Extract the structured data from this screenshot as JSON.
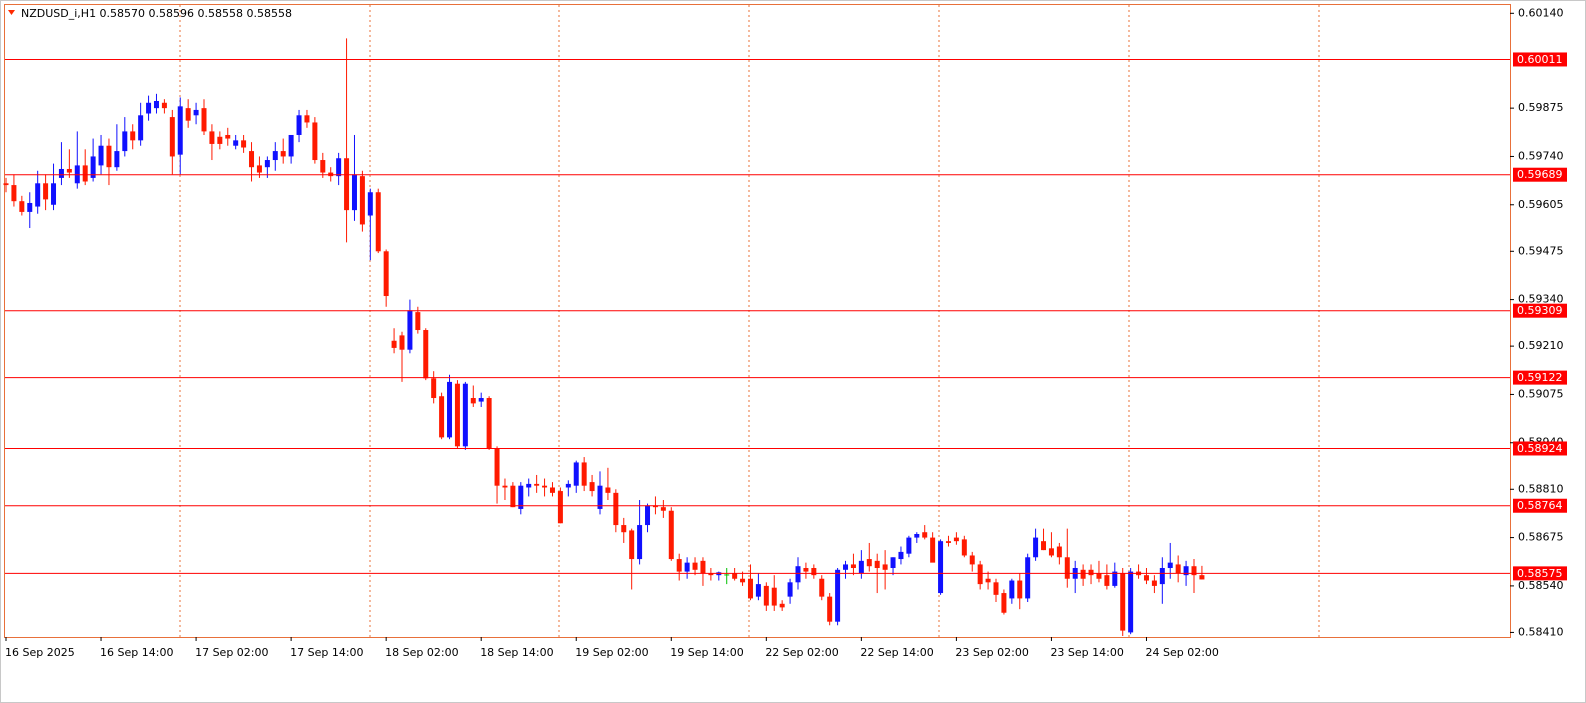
{
  "chart_data": {
    "type": "candlestick",
    "header": "NZDUSD_i,H1  0.58570 0.58596 0.58558 0.58558",
    "up_color": "#1010ff",
    "down_color": "#ff1a00",
    "doji_color": "#00c000",
    "level_color": "#ff0000",
    "ylim": [
      0.584,
      0.60166
    ],
    "yticks": [
      {
        "value": 0.6014,
        "label": "0.60140"
      },
      {
        "value": 0.59875,
        "label": "0.59875"
      },
      {
        "value": 0.5974,
        "label": "0.59740"
      },
      {
        "value": 0.59605,
        "label": "0.59605"
      },
      {
        "value": 0.59475,
        "label": "0.59475"
      },
      {
        "value": 0.5934,
        "label": "0.59340"
      },
      {
        "value": 0.5921,
        "label": "0.59210"
      },
      {
        "value": 0.59075,
        "label": "0.59075"
      },
      {
        "value": 0.5894,
        "label": "0.58940"
      },
      {
        "value": 0.5881,
        "label": "0.58810"
      },
      {
        "value": 0.58675,
        "label": "0.58675"
      },
      {
        "value": 0.5854,
        "label": "0.58540"
      },
      {
        "value": 0.5841,
        "label": "0.58410"
      }
    ],
    "levels": [
      0.60011,
      0.59689,
      0.59309,
      0.59122,
      0.58924,
      0.58764,
      0.58575
    ],
    "categories": [
      "16 Sep 2025",
      null,
      null,
      null,
      null,
      null,
      null,
      null,
      null,
      null,
      null,
      null,
      "16 Sep 14:00",
      null,
      null,
      null,
      null,
      null,
      null,
      null,
      null,
      null,
      null,
      null,
      "17 Sep 02:00",
      null,
      null,
      null,
      null,
      null,
      null,
      null,
      null,
      null,
      null,
      null,
      "17 Sep 14:00",
      null,
      null,
      null,
      null,
      null,
      null,
      null,
      null,
      null,
      null,
      null,
      "18 Sep 02:00",
      null,
      null,
      null,
      null,
      null,
      null,
      null,
      null,
      null,
      null,
      null,
      "18 Sep 14:00",
      null,
      null,
      null,
      null,
      null,
      null,
      null,
      null,
      null,
      null,
      null,
      "19 Sep 02:00",
      null,
      null,
      null,
      null,
      null,
      null,
      null,
      null,
      null,
      null,
      null,
      "19 Sep 14:00",
      null,
      null,
      null,
      null,
      null,
      null,
      null,
      null,
      null,
      null,
      null,
      "22 Sep 02:00",
      null,
      null,
      null,
      null,
      null,
      null,
      null,
      null,
      null,
      null,
      null,
      "22 Sep 14:00",
      null,
      null,
      null,
      null,
      null,
      null,
      null,
      null,
      null,
      null,
      null,
      "23 Sep 02:00",
      null,
      null,
      null,
      null,
      null,
      null,
      null,
      null,
      null,
      null,
      null,
      "23 Sep 14:00",
      null,
      null,
      null,
      null,
      null,
      null,
      null,
      null,
      null,
      null,
      null,
      "24 Sep 02:00",
      null,
      null,
      null,
      null,
      null,
      null,
      null
    ],
    "open": [
      0.59665,
      0.5966,
      0.59615,
      0.59585,
      0.596,
      0.59665,
      0.59605,
      0.5968,
      0.59705,
      0.59665,
      0.59715,
      0.5968,
      0.59715,
      0.5977,
      0.5971,
      0.59755,
      0.5981,
      0.59785,
      0.5986,
      0.59875,
      0.5989,
      0.5985,
      0.59745,
      0.59875,
      0.59855,
      0.59875,
      0.5981,
      0.59795,
      0.598,
      0.5977,
      0.59785,
      0.59755,
      0.59715,
      0.5971,
      0.5973,
      0.59755,
      0.5974,
      0.598,
      0.59855,
      0.59835,
      0.5973,
      0.59695,
      0.59685,
      0.59735,
      0.5959,
      0.59685,
      0.59575,
      0.5964,
      0.59475,
      0.59225,
      0.5924,
      0.592,
      0.59305,
      0.59255,
      0.5912,
      0.5907,
      0.58955,
      0.59105,
      0.5893,
      0.59065,
      0.59055,
      0.59065,
      0.58925,
      0.5882,
      0.5882,
      0.58755,
      0.58815,
      0.58825,
      0.5882,
      0.58815,
      0.58805,
      0.58815,
      0.5882,
      0.58885,
      0.5883,
      0.58755,
      0.58815,
      0.588,
      0.5871,
      0.58695,
      0.58615,
      0.5871,
      0.58765,
      0.5876,
      0.5875,
      0.58615,
      0.5858,
      0.58605,
      0.5861,
      0.58575,
      0.5857,
      0.58572,
      0.58575,
      0.5856,
      0.5856,
      0.5851,
      0.5854,
      0.58535,
      0.5849,
      0.5851,
      0.5855,
      0.5859,
      0.5859,
      0.5856,
      0.5851,
      0.5844,
      0.58585,
      0.586,
      0.58575,
      0.58615,
      0.5861,
      0.586,
      0.5859,
      0.58615,
      0.5863,
      0.58675,
      0.5869,
      0.58675,
      0.5852,
      0.58665,
      0.58675,
      0.5867,
      0.58625,
      0.586,
      0.5856,
      0.5855,
      0.5852,
      0.58505,
      0.58555,
      0.58505,
      0.5862,
      0.58665,
      0.58645,
      0.5865,
      0.5862,
      0.5856,
      0.58585,
      0.58585,
      0.58575,
      0.5857,
      0.5854,
      0.58575,
      0.5841,
      0.5858,
      0.5857,
      0.58555,
      0.58545,
      0.5859,
      0.586,
      0.5857,
      0.58595,
      0.5857
    ],
    "high": [
      0.5968,
      0.5969,
      0.5963,
      0.5964,
      0.597,
      0.5969,
      0.5972,
      0.5978,
      0.5976,
      0.5981,
      0.5976,
      0.5979,
      0.598,
      0.5979,
      0.5983,
      0.5985,
      0.5983,
      0.5989,
      0.5991,
      0.59915,
      0.599,
      0.5987,
      0.59905,
      0.599,
      0.5989,
      0.599,
      0.5983,
      0.5981,
      0.5982,
      0.598,
      0.598,
      0.5978,
      0.5974,
      0.5974,
      0.5978,
      0.5979,
      0.5979,
      0.5987,
      0.5987,
      0.5985,
      0.5975,
      0.5971,
      0.5975,
      0.6007,
      0.598,
      0.597,
      0.5965,
      0.5965,
      0.5948,
      0.5926,
      0.5925,
      0.5934,
      0.5932,
      0.5926,
      0.5914,
      0.5908,
      0.5913,
      0.59115,
      0.5911,
      0.591,
      0.5908,
      0.5907,
      0.5893,
      0.5884,
      0.5883,
      0.5883,
      0.5884,
      0.5885,
      0.5884,
      0.5883,
      0.58815,
      0.58835,
      0.5889,
      0.589,
      0.5885,
      0.5886,
      0.5887,
      0.5881,
      0.5873,
      0.587,
      0.5878,
      0.5877,
      0.5879,
      0.5878,
      0.5876,
      0.5863,
      0.5862,
      0.5862,
      0.5862,
      0.5859,
      0.5858,
      0.5859,
      0.5859,
      0.5858,
      0.586,
      0.58575,
      0.5855,
      0.5857,
      0.585,
      0.5856,
      0.5862,
      0.58605,
      0.586,
      0.5857,
      0.5852,
      0.5859,
      0.5861,
      0.5863,
      0.5864,
      0.5866,
      0.5863,
      0.5864,
      0.5862,
      0.5865,
      0.5868,
      0.5869,
      0.5871,
      0.5869,
      0.5867,
      0.5868,
      0.5869,
      0.5868,
      0.58635,
      0.5861,
      0.5858,
      0.5856,
      0.5853,
      0.5856,
      0.58575,
      0.5863,
      0.587,
      0.587,
      0.5869,
      0.5866,
      0.587,
      0.5861,
      0.586,
      0.586,
      0.5861,
      0.586,
      0.58605,
      0.5859,
      0.5859,
      0.586,
      0.5859,
      0.5857,
      0.5862,
      0.5866,
      0.58625,
      0.5861,
      0.58615,
      0.58596
    ],
    "low": [
      0.5964,
      0.596,
      0.59575,
      0.5954,
      0.5958,
      0.5959,
      0.5959,
      0.5966,
      0.5968,
      0.5965,
      0.5966,
      0.5967,
      0.5969,
      0.5966,
      0.597,
      0.5974,
      0.5976,
      0.5977,
      0.5984,
      0.5986,
      0.5986,
      0.5969,
      0.5969,
      0.5982,
      0.5983,
      0.598,
      0.5973,
      0.5976,
      0.5977,
      0.5976,
      0.5975,
      0.5967,
      0.5968,
      0.5968,
      0.597,
      0.5972,
      0.5972,
      0.5978,
      0.5982,
      0.5972,
      0.5968,
      0.5967,
      0.5966,
      0.595,
      0.5956,
      0.5953,
      0.5945,
      0.5947,
      0.5932,
      0.5919,
      0.5911,
      0.5919,
      0.59245,
      0.59115,
      0.5905,
      0.5895,
      0.5895,
      0.58925,
      0.5892,
      0.5904,
      0.5904,
      0.5892,
      0.5877,
      0.5878,
      0.5876,
      0.5874,
      0.5879,
      0.588,
      0.5879,
      0.5879,
      0.58715,
      0.5879,
      0.588,
      0.58805,
      0.5879,
      0.5874,
      0.5878,
      0.5869,
      0.5866,
      0.5853,
      0.586,
      0.5869,
      0.5874,
      0.5873,
      0.5861,
      0.58555,
      0.5856,
      0.5857,
      0.5854,
      0.58555,
      0.58555,
      0.58545,
      0.58555,
      0.5854,
      0.585,
      0.585,
      0.5847,
      0.5847,
      0.5847,
      0.5849,
      0.5853,
      0.5856,
      0.5856,
      0.585,
      0.5843,
      0.5843,
      0.5856,
      0.5857,
      0.5856,
      0.5858,
      0.5852,
      0.5853,
      0.5857,
      0.586,
      0.5862,
      0.5866,
      0.5867,
      0.5861,
      0.58515,
      0.5865,
      0.58655,
      0.5862,
      0.5858,
      0.5853,
      0.5853,
      0.58495,
      0.5846,
      0.5849,
      0.58475,
      0.58495,
      0.5861,
      0.5864,
      0.5862,
      0.586,
      0.58535,
      0.5852,
      0.5854,
      0.58545,
      0.5855,
      0.5853,
      0.58535,
      0.584,
      0.58405,
      0.5856,
      0.58545,
      0.5852,
      0.5849,
      0.5856,
      0.5855,
      0.5854,
      0.5852,
      0.58558
    ],
    "close": [
      0.5966,
      0.59615,
      0.59585,
      0.5961,
      0.59665,
      0.5962,
      0.59665,
      0.59705,
      0.59695,
      0.59715,
      0.5967,
      0.5974,
      0.5977,
      0.5971,
      0.59755,
      0.5981,
      0.59785,
      0.59855,
      0.5989,
      0.59895,
      0.59875,
      0.5974,
      0.5988,
      0.5984,
      0.5987,
      0.5981,
      0.59775,
      0.59775,
      0.5979,
      0.59785,
      0.59765,
      0.5971,
      0.59695,
      0.5973,
      0.59755,
      0.5974,
      0.598,
      0.59855,
      0.59835,
      0.5973,
      0.59695,
      0.59685,
      0.59735,
      0.5959,
      0.5969,
      0.5955,
      0.5964,
      0.59475,
      0.5935,
      0.59205,
      0.592,
      0.5931,
      0.59255,
      0.5912,
      0.59065,
      0.58955,
      0.5911,
      0.5893,
      0.59105,
      0.5905,
      0.59065,
      0.58925,
      0.5882,
      0.58815,
      0.5876,
      0.5882,
      0.58825,
      0.5882,
      0.58815,
      0.588,
      0.58715,
      0.58825,
      0.58885,
      0.5882,
      0.58805,
      0.5882,
      0.588,
      0.5871,
      0.5869,
      0.58615,
      0.5871,
      0.58765,
      0.5876,
      0.5875,
      0.58615,
      0.5858,
      0.58605,
      0.58585,
      0.58575,
      0.5857,
      0.58578,
      0.58572,
      0.5856,
      0.5855,
      0.58505,
      0.58545,
      0.58485,
      0.58485,
      0.5848,
      0.5855,
      0.58595,
      0.5858,
      0.5857,
      0.5851,
      0.5844,
      0.58585,
      0.586,
      0.5859,
      0.5861,
      0.58595,
      0.5859,
      0.58585,
      0.5862,
      0.58635,
      0.58675,
      0.58685,
      0.58675,
      0.58605,
      0.58665,
      0.5866,
      0.58665,
      0.58625,
      0.586,
      0.58545,
      0.5855,
      0.58515,
      0.58465,
      0.58555,
      0.58505,
      0.5862,
      0.58675,
      0.5864,
      0.58625,
      0.5862,
      0.5856,
      0.5859,
      0.5856,
      0.5857,
      0.5856,
      0.5854,
      0.5858,
      0.58415,
      0.5858,
      0.5857,
      0.58555,
      0.5854,
      0.5859,
      0.58605,
      0.58575,
      0.58595,
      0.5857,
      0.58558
    ]
  }
}
